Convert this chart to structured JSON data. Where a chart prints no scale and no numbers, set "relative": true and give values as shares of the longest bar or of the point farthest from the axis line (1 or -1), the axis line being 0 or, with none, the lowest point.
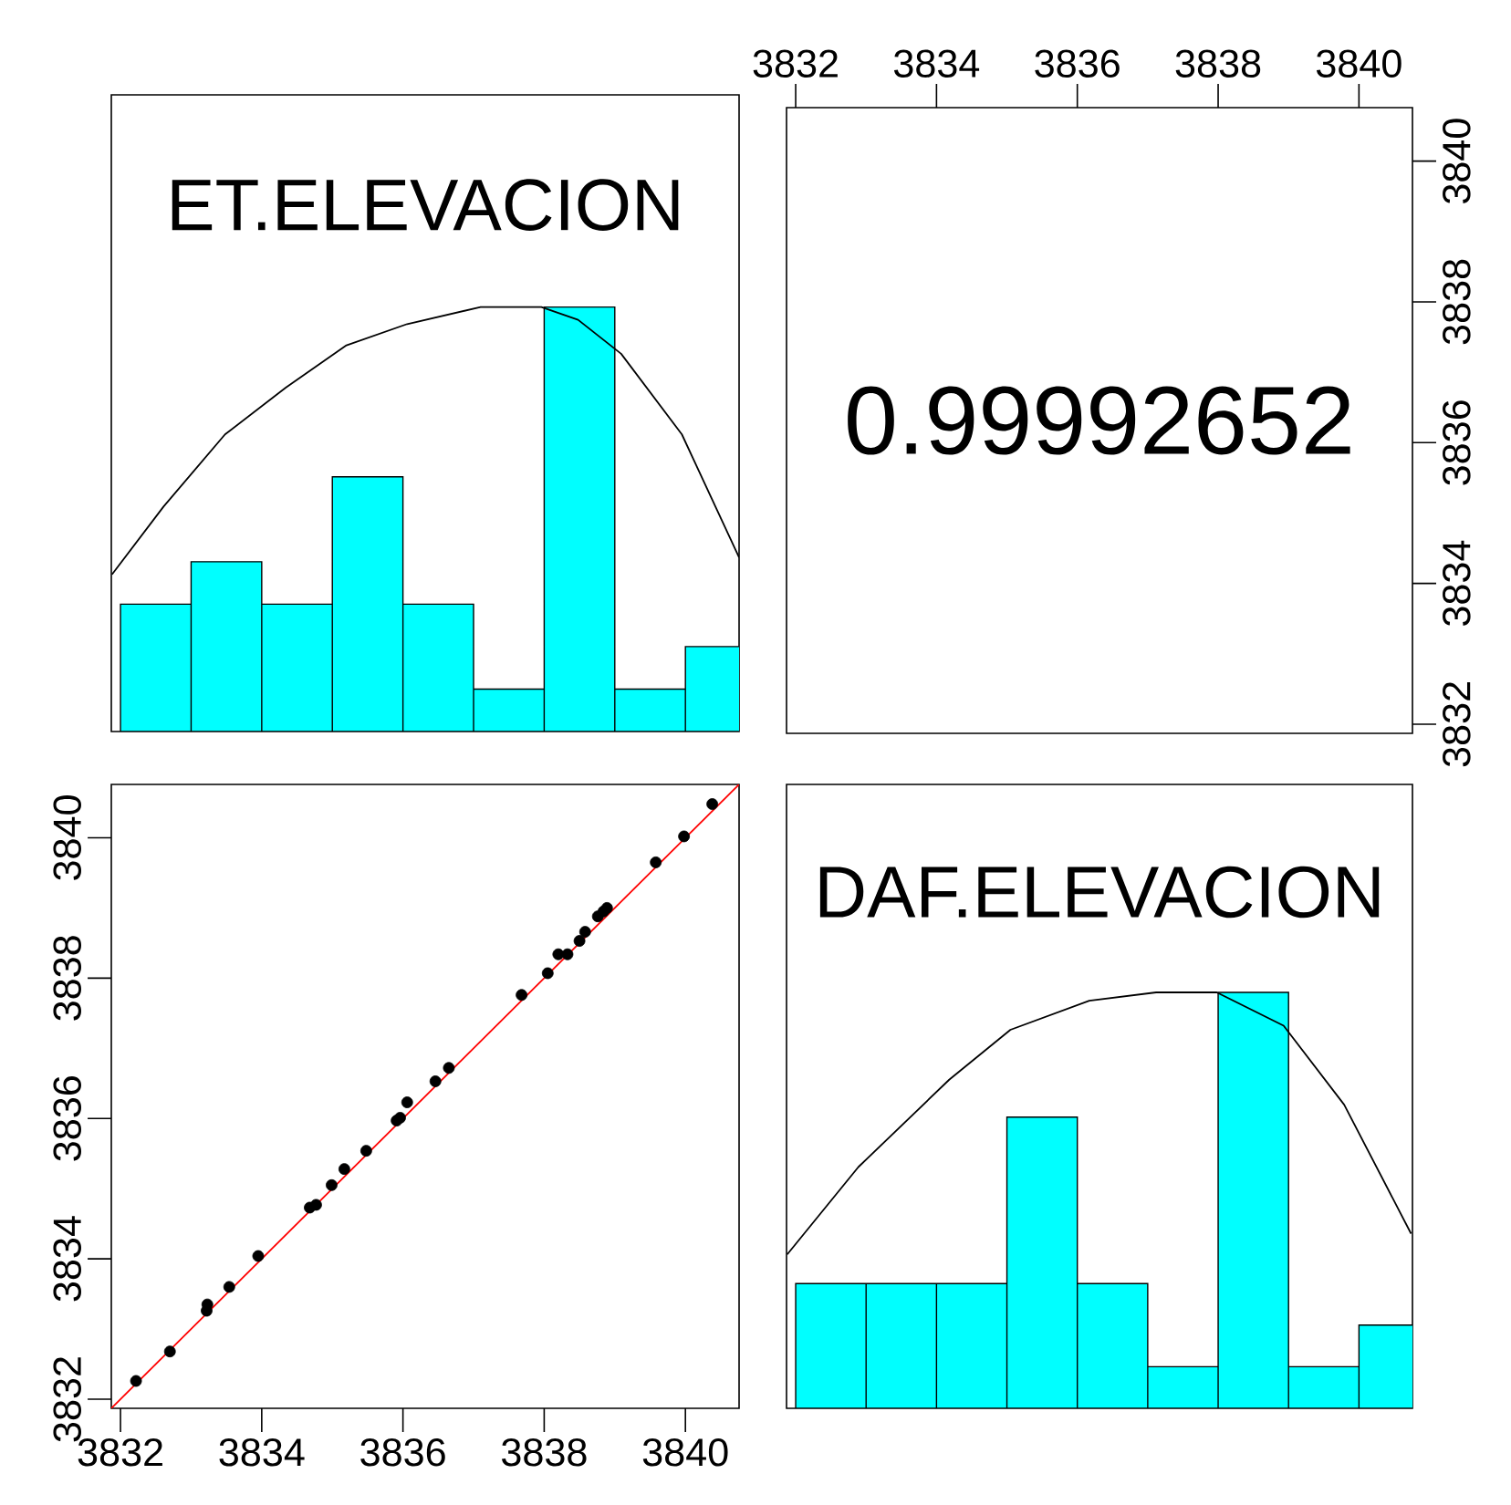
{
  "chart_data": [
    {
      "type": "histogram",
      "title": "ET.ELEVACION",
      "bins": [
        3832,
        3833,
        3834,
        3835,
        3836,
        3837,
        3838,
        3839,
        3840,
        3841
      ],
      "values": [
        0.3,
        0.4,
        0.3,
        0.6,
        0.3,
        0.1,
        1,
        0.1,
        0.2
      ],
      "color": "#00ffff",
      "relative": true,
      "xlim": [
        3831.87,
        3840.76
      ],
      "series": [
        {
          "type": "line",
          "color": "#000000",
          "x": [
            3831.88,
            3832.61,
            3833.48,
            3834.34,
            3835.2,
            3836.06,
            3837.1,
            3837.96,
            3838.48,
            3839.09,
            3839.95,
            3840.76
          ],
          "values": [
            0.37,
            0.53,
            0.7,
            0.81,
            0.91,
            0.96,
            1,
            1,
            0.97,
            0.89,
            0.7,
            0.41
          ]
        }
      ]
    },
    {
      "type": "scatter",
      "annotations": [
        "0.99992652"
      ],
      "xlim": [
        3831.87,
        3840.76
      ],
      "ylim": [
        3831.87,
        3840.76
      ],
      "xticks": [
        3832,
        3834,
        3836,
        3838,
        3840
      ],
      "yticks": [
        3832,
        3834,
        3836,
        3838,
        3840
      ]
    },
    {
      "type": "scatter",
      "marker": "circle",
      "xlim": [
        3831.87,
        3840.76
      ],
      "ylim": [
        3831.87,
        3840.76
      ],
      "xticks": [
        3832,
        3834,
        3836,
        3838,
        3840
      ],
      "yticks": [
        3832,
        3834,
        3836,
        3838,
        3840
      ],
      "series": [
        {
          "color": "#000000",
          "x": [
            3832.22,
            3832.7,
            3833.22,
            3833.23,
            3833.54,
            3833.95,
            3834.68,
            3834.77,
            3834.99,
            3835.17,
            3835.48,
            3835.91,
            3835.96,
            3836.06,
            3836.46,
            3836.65,
            3837.68,
            3838.05,
            3838.2,
            3838.33,
            3838.5,
            3838.58,
            3838.76,
            3838.84,
            3838.89,
            3839.58,
            3839.98,
            3840.38
          ],
          "values": [
            3832.26,
            3832.68,
            3833.26,
            3833.35,
            3833.6,
            3834.04,
            3834.73,
            3834.77,
            3835.05,
            3835.28,
            3835.54,
            3835.97,
            3836.01,
            3836.23,
            3836.53,
            3836.72,
            3837.76,
            3838.07,
            3838.34,
            3838.34,
            3838.53,
            3838.66,
            3838.88,
            3838.95,
            3839.0,
            3839.65,
            3840.02,
            3840.48
          ]
        },
        {
          "type": "line",
          "marker": "none",
          "color": "#ff0000",
          "x": [
            3831.87,
            3840.76
          ],
          "values": [
            3831.87,
            3840.76
          ]
        }
      ]
    },
    {
      "type": "histogram",
      "title": "DAF.ELEVACION",
      "bins": [
        3832,
        3833,
        3834,
        3835,
        3836,
        3837,
        3838,
        3839,
        3840,
        3841
      ],
      "values": [
        0.3,
        0.3,
        0.3,
        0.7,
        0.3,
        0.1,
        1,
        0.1,
        0.2
      ],
      "color": "#00ffff",
      "relative": true,
      "xlim": [
        3831.87,
        3840.76
      ],
      "series": [
        {
          "type": "line",
          "color": "#000000",
          "x": [
            3831.88,
            3832.89,
            3834.18,
            3835.05,
            3836.17,
            3837.12,
            3837.98,
            3838.93,
            3839.79,
            3840.74
          ],
          "values": [
            0.37,
            0.58,
            0.79,
            0.91,
            0.98,
            1,
            1,
            0.92,
            0.73,
            0.42
          ]
        }
      ]
    }
  ]
}
